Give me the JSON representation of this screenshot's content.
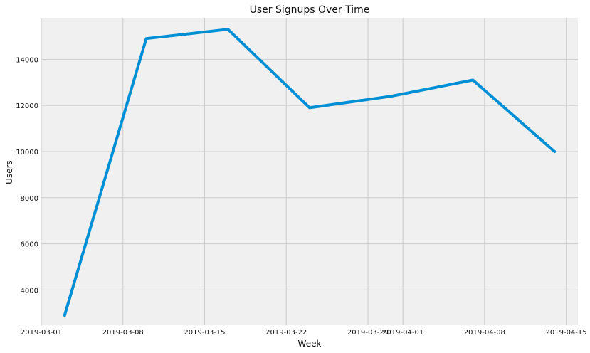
{
  "chart_data": {
    "type": "line",
    "title": "User Signups Over Time",
    "xlabel": "Week",
    "ylabel": "Users",
    "x_ticks": [
      "2019-03-01",
      "2019-03-08",
      "2019-03-15",
      "2019-03-22",
      "2019-03-29",
      "2019-04-01",
      "2019-04-08",
      "2019-04-15"
    ],
    "y_ticks": [
      4000,
      6000,
      8000,
      10000,
      12000,
      14000
    ],
    "x": [
      "2019-03-03",
      "2019-03-10",
      "2019-03-17",
      "2019-03-24",
      "2019-03-31",
      "2019-04-07",
      "2019-04-14"
    ],
    "series": [
      {
        "values": [
          2900,
          14900,
          15300,
          11900,
          12400,
          13100,
          10000
        ]
      }
    ],
    "xlim": [
      "2019-03-01",
      "2019-04-16"
    ],
    "ylim": [
      2500,
      15800
    ],
    "grid": true,
    "colors": {
      "series": "#008fd5",
      "plot_background": "#f0f0f0",
      "grid": "#cbcbcb"
    }
  }
}
